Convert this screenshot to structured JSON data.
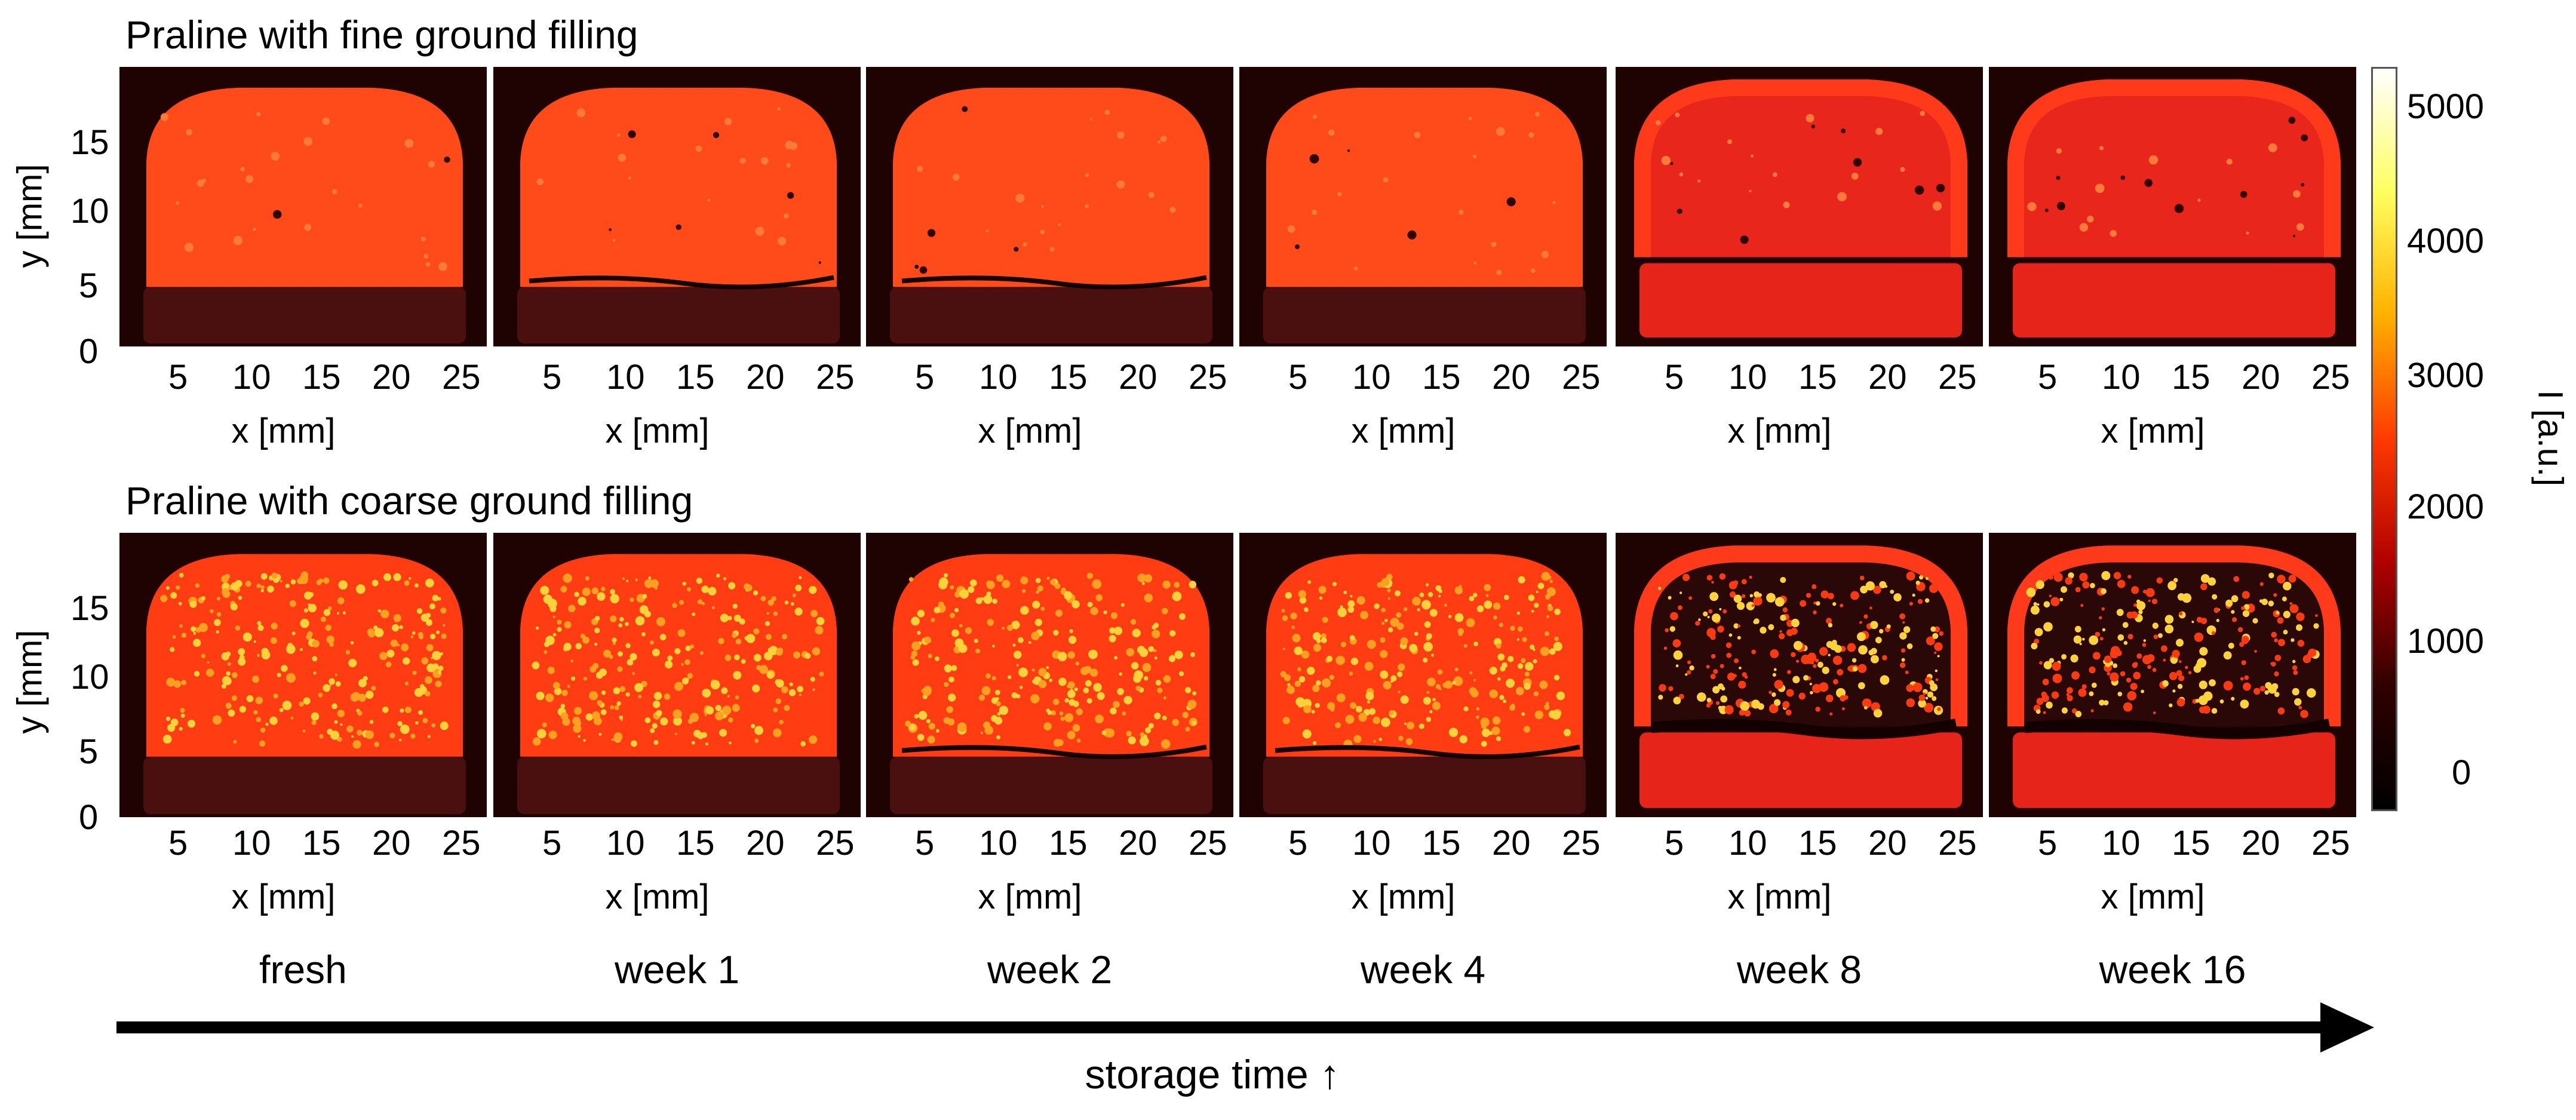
{
  "figure": {
    "rows": [
      {
        "title": "Praline with fine ground filling",
        "filling": "fine"
      },
      {
        "title": "Praline with coarse ground filling",
        "filling": "coarse"
      }
    ],
    "weeks": [
      "fresh",
      "week 1",
      "week 2",
      "week 4",
      "week 8",
      "week 16"
    ],
    "x_ticks": [
      "5",
      "10",
      "15",
      "20",
      "25"
    ],
    "y_ticks": [
      "15",
      "10",
      "5",
      "0"
    ],
    "x_label": "x [mm]",
    "y_label": "y [mm]",
    "colorbar": {
      "label": "I [a.u.]",
      "ticks": [
        "5000",
        "4000",
        "3000",
        "2000",
        "1000",
        "0"
      ],
      "colors": [
        "#ffffff",
        "#ffff60",
        "#ffb000",
        "#ff3a00",
        "#b00000",
        "#300000",
        "#000000"
      ]
    },
    "time_axis_label": "storage time ↑"
  }
}
